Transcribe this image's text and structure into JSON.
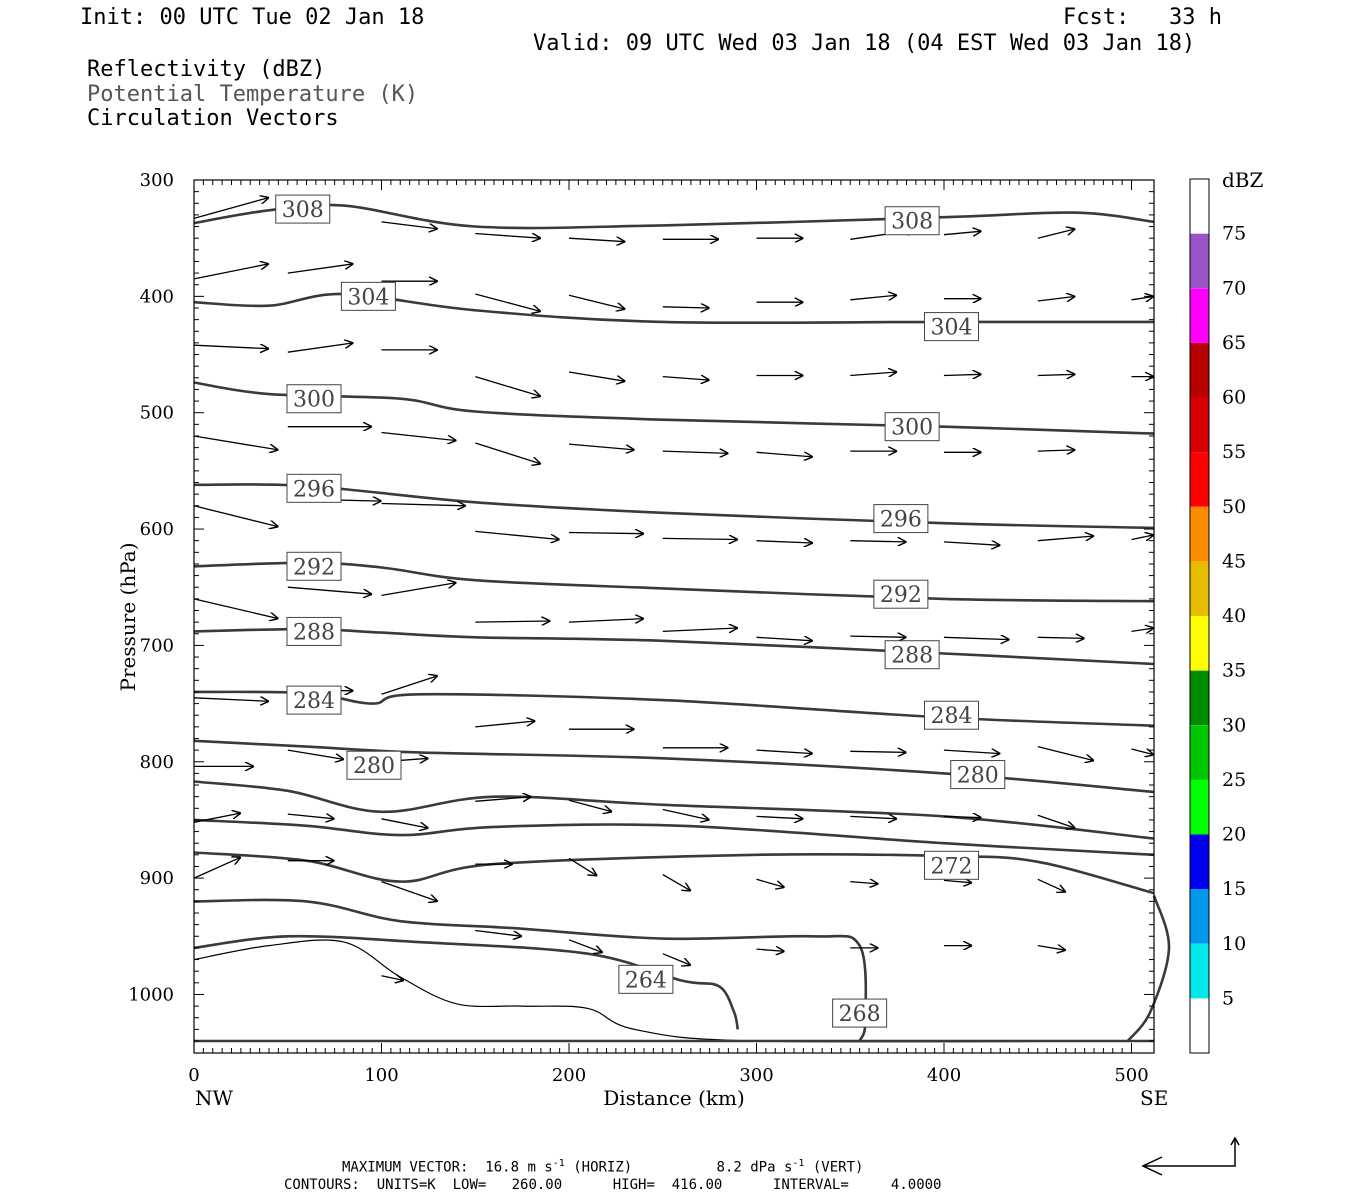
{
  "header": {
    "init": "Init: 00 UTC Tue 02 Jan 18",
    "fcst": "Fcst:   33 h",
    "valid": "Valid: 09 UTC Wed 03 Jan 18 (04 EST Wed 03 Jan 18)",
    "field1": "Reflectivity (dBZ)",
    "field2": "Potential Temperature (K)",
    "field3": "Circulation Vectors"
  },
  "footer": {
    "max_vector_label": "MAXIMUM VECTOR:",
    "horiz_value": "16.8 m s",
    "horiz_exp": "-1",
    "horiz_tag": "(HORIZ)",
    "vert_value": "8.2 dPa s",
    "vert_exp": "-1",
    "vert_tag": "(VERT)",
    "contours_label": "CONTOURS:",
    "units": "UNITS=K",
    "low": "LOW=   260.00",
    "high": "HIGH=  416.00",
    "interval": "INTERVAL=     4.0000"
  },
  "chart_data": {
    "type": "contour+vector cross-section",
    "xlabel": "Distance (km)",
    "ylabel": "Pressure (hPa)",
    "xlim": [
      0,
      512
    ],
    "ylim": [
      1040,
      300
    ],
    "x_ticks": [
      "0",
      "100",
      "200",
      "300",
      "400",
      "500"
    ],
    "y_ticks": [
      "300",
      "400",
      "500",
      "600",
      "700",
      "800",
      "900",
      "1000"
    ],
    "x_ends": [
      "NW",
      "SE"
    ],
    "colorbar": {
      "unit": "dBZ",
      "levels": [
        "5",
        "10",
        "15",
        "20",
        "25",
        "30",
        "35",
        "40",
        "45",
        "50",
        "55",
        "60",
        "65",
        "70",
        "75"
      ],
      "colors": [
        "#ffffff",
        "#00e8e8",
        "#0099ee",
        "#0000f0",
        "#00ff00",
        "#00c800",
        "#008c00",
        "#ffff00",
        "#e6bd00",
        "#ff8c00",
        "#ff0000",
        "#d80000",
        "#b80000",
        "#ff00ff",
        "#9955c8",
        "#ffffff"
      ]
    },
    "theta_contours": [
      {
        "label": "308",
        "points": [
          [
            0,
            337
          ],
          [
            40,
            326
          ],
          [
            80,
            322
          ],
          [
            150,
            340
          ],
          [
            250,
            339
          ],
          [
            400,
            332
          ],
          [
            470,
            328
          ],
          [
            512,
            336
          ]
        ],
        "labels": [
          [
            58,
            325
          ],
          [
            383,
            335
          ]
        ]
      },
      {
        "label": "304",
        "points": [
          [
            0,
            405
          ],
          [
            40,
            408
          ],
          [
            80,
            398
          ],
          [
            150,
            412
          ],
          [
            250,
            422
          ],
          [
            400,
            422
          ],
          [
            512,
            422
          ]
        ],
        "labels": [
          [
            93,
            400
          ],
          [
            404,
            426
          ]
        ]
      },
      {
        "label": "300",
        "points": [
          [
            0,
            474
          ],
          [
            40,
            484
          ],
          [
            110,
            488
          ],
          [
            150,
            499
          ],
          [
            250,
            506
          ],
          [
            400,
            512
          ],
          [
            512,
            518
          ]
        ],
        "labels": [
          [
            64,
            488
          ],
          [
            383,
            512
          ]
        ]
      },
      {
        "label": "296",
        "points": [
          [
            0,
            562
          ],
          [
            60,
            563
          ],
          [
            150,
            577
          ],
          [
            250,
            586
          ],
          [
            400,
            595
          ],
          [
            512,
            599
          ]
        ],
        "labels": [
          [
            64,
            565
          ],
          [
            377,
            591
          ]
        ]
      },
      {
        "label": "292",
        "points": [
          [
            0,
            632
          ],
          [
            60,
            629
          ],
          [
            100,
            633
          ],
          [
            150,
            644
          ],
          [
            250,
            651
          ],
          [
            400,
            660
          ],
          [
            512,
            662
          ]
        ],
        "labels": [
          [
            64,
            632
          ],
          [
            377,
            656
          ]
        ]
      },
      {
        "label": "288",
        "points": [
          [
            0,
            688
          ],
          [
            60,
            686
          ],
          [
            100,
            689
          ],
          [
            150,
            693
          ],
          [
            250,
            696
          ],
          [
            400,
            707
          ],
          [
            512,
            716
          ]
        ],
        "labels": [
          [
            64,
            688
          ],
          [
            383,
            708
          ]
        ]
      },
      {
        "label": "284",
        "points": [
          [
            0,
            740
          ],
          [
            60,
            741
          ],
          [
            95,
            750
          ],
          [
            120,
            742
          ],
          [
            250,
            747
          ],
          [
            400,
            762
          ],
          [
            512,
            769
          ]
        ],
        "labels": [
          [
            64,
            747
          ],
          [
            404,
            760
          ]
        ]
      },
      {
        "label": "280",
        "points": [
          [
            0,
            782
          ],
          [
            60,
            787
          ],
          [
            120,
            792
          ],
          [
            250,
            797
          ],
          [
            400,
            810
          ],
          [
            512,
            826
          ]
        ],
        "labels": [
          [
            96,
            803
          ],
          [
            418,
            811
          ]
        ]
      },
      {
        "label": "",
        "points": [
          [
            0,
            817
          ],
          [
            50,
            825
          ],
          [
            100,
            843
          ],
          [
            160,
            830
          ],
          [
            250,
            837
          ],
          [
            400,
            847
          ],
          [
            512,
            866
          ]
        ],
        "labels": []
      },
      {
        "label": "",
        "points": [
          [
            0,
            850
          ],
          [
            60,
            855
          ],
          [
            110,
            863
          ],
          [
            160,
            856
          ],
          [
            260,
            855
          ],
          [
            400,
            870
          ],
          [
            512,
            880
          ]
        ],
        "labels": []
      },
      {
        "label": "272",
        "points": [
          [
            0,
            878
          ],
          [
            60,
            885
          ],
          [
            110,
            903
          ],
          [
            160,
            888
          ],
          [
            300,
            880
          ],
          [
            400,
            881
          ],
          [
            450,
            886
          ],
          [
            512,
            913
          ]
        ],
        "labels": [
          [
            404,
            889
          ]
        ]
      },
      {
        "label": "",
        "points": [
          [
            0,
            920
          ],
          [
            60,
            920
          ],
          [
            110,
            937
          ],
          [
            170,
            943
          ],
          [
            250,
            952
          ],
          [
            330,
            950
          ],
          [
            355,
            958
          ],
          [
            358,
            1023
          ],
          [
            355,
            1040
          ]
        ],
        "labels": []
      },
      {
        "label": "264",
        "points": [
          [
            0,
            960
          ],
          [
            50,
            950
          ],
          [
            120,
            955
          ],
          [
            210,
            965
          ],
          [
            260,
            988
          ],
          [
            280,
            993
          ],
          [
            288,
            1015
          ],
          [
            290,
            1030
          ]
        ],
        "labels": [
          [
            241,
            987
          ]
        ]
      },
      {
        "label": "268",
        "points": [
          [
            512,
            915
          ],
          [
            520,
            960
          ],
          [
            510,
            1015
          ],
          [
            498,
            1040
          ]
        ],
        "labels": [
          [
            355,
            1016
          ]
        ]
      },
      {
        "label": "",
        "points": [
          [
            0,
            1040
          ],
          [
            512,
            1040
          ]
        ],
        "labels": []
      }
    ],
    "terrain": [
      [
        0,
        970
      ],
      [
        40,
        958
      ],
      [
        80,
        955
      ],
      [
        110,
        985
      ],
      [
        140,
        1008
      ],
      [
        175,
        1010
      ],
      [
        210,
        1012
      ],
      [
        235,
        1030
      ],
      [
        300,
        1040
      ],
      [
        512,
        1040
      ]
    ],
    "vectors": [
      [
        0,
        333,
        40,
        315
      ],
      [
        100,
        336,
        130,
        342
      ],
      [
        150,
        346,
        185,
        350
      ],
      [
        200,
        350,
        230,
        353
      ],
      [
        250,
        351,
        280,
        351
      ],
      [
        300,
        350,
        325,
        350
      ],
      [
        350,
        351,
        385,
        343
      ],
      [
        400,
        347,
        420,
        344
      ],
      [
        450,
        350,
        470,
        342
      ],
      [
        0,
        385,
        40,
        372
      ],
      [
        50,
        380,
        85,
        372
      ],
      [
        100,
        387,
        130,
        387
      ],
      [
        150,
        398,
        185,
        413
      ],
      [
        200,
        399,
        230,
        411
      ],
      [
        250,
        409,
        275,
        410
      ],
      [
        300,
        405,
        325,
        405
      ],
      [
        350,
        403,
        375,
        399
      ],
      [
        400,
        402,
        420,
        402
      ],
      [
        450,
        404,
        470,
        400
      ],
      [
        500,
        403,
        512,
        400
      ],
      [
        0,
        442,
        40,
        445
      ],
      [
        50,
        448,
        85,
        440
      ],
      [
        100,
        446,
        130,
        446
      ],
      [
        150,
        469,
        185,
        486
      ],
      [
        200,
        465,
        230,
        473
      ],
      [
        250,
        469,
        275,
        472
      ],
      [
        300,
        468,
        325,
        468
      ],
      [
        350,
        468,
        375,
        465
      ],
      [
        400,
        468,
        420,
        467
      ],
      [
        450,
        468,
        470,
        467
      ],
      [
        500,
        469,
        512,
        469
      ],
      [
        0,
        520,
        45,
        532
      ],
      [
        50,
        512,
        95,
        512
      ],
      [
        100,
        517,
        140,
        524
      ],
      [
        150,
        526,
        185,
        544
      ],
      [
        200,
        527,
        235,
        532
      ],
      [
        250,
        533,
        285,
        535
      ],
      [
        300,
        534,
        330,
        538
      ],
      [
        350,
        533,
        375,
        533
      ],
      [
        400,
        534,
        420,
        534
      ],
      [
        450,
        533,
        470,
        532
      ],
      [
        0,
        580,
        45,
        598
      ],
      [
        50,
        574,
        100,
        576
      ],
      [
        100,
        578,
        145,
        580
      ],
      [
        150,
        602,
        195,
        609
      ],
      [
        200,
        603,
        240,
        604
      ],
      [
        250,
        608,
        290,
        609
      ],
      [
        300,
        610,
        330,
        612
      ],
      [
        350,
        610,
        380,
        611
      ],
      [
        400,
        611,
        430,
        614
      ],
      [
        450,
        610,
        480,
        606
      ],
      [
        500,
        609,
        512,
        605
      ],
      [
        0,
        660,
        45,
        677
      ],
      [
        50,
        650,
        95,
        656
      ],
      [
        100,
        657,
        140,
        646
      ],
      [
        150,
        680,
        190,
        679
      ],
      [
        200,
        680,
        240,
        677
      ],
      [
        250,
        688,
        290,
        685
      ],
      [
        300,
        693,
        330,
        696
      ],
      [
        350,
        692,
        380,
        693
      ],
      [
        400,
        693,
        435,
        695
      ],
      [
        450,
        693,
        475,
        694
      ],
      [
        500,
        688,
        512,
        685
      ],
      [
        0,
        745,
        40,
        748
      ],
      [
        50,
        738,
        85,
        739
      ],
      [
        100,
        742,
        130,
        726
      ],
      [
        150,
        770,
        182,
        765
      ],
      [
        200,
        772,
        235,
        772
      ],
      [
        250,
        788,
        285,
        788
      ],
      [
        300,
        790,
        330,
        793
      ],
      [
        350,
        791,
        380,
        792
      ],
      [
        400,
        790,
        430,
        793
      ],
      [
        450,
        787,
        480,
        799
      ],
      [
        500,
        789,
        512,
        794
      ],
      [
        0,
        804,
        32,
        804
      ],
      [
        50,
        790,
        80,
        798
      ],
      [
        100,
        800,
        125,
        797
      ],
      [
        150,
        834,
        180,
        830
      ],
      [
        200,
        833,
        223,
        843
      ],
      [
        250,
        841,
        275,
        850
      ],
      [
        300,
        847,
        325,
        849
      ],
      [
        350,
        847,
        375,
        849
      ],
      [
        400,
        847,
        420,
        848
      ],
      [
        450,
        846,
        470,
        857
      ],
      [
        0,
        852,
        25,
        844
      ],
      [
        50,
        845,
        75,
        849
      ],
      [
        100,
        849,
        125,
        857
      ],
      [
        150,
        888,
        170,
        888
      ],
      [
        200,
        883,
        215,
        898
      ],
      [
        250,
        897,
        265,
        911
      ],
      [
        300,
        901,
        315,
        908
      ],
      [
        350,
        903,
        365,
        905
      ],
      [
        400,
        902,
        415,
        904
      ],
      [
        450,
        901,
        465,
        912
      ],
      [
        0,
        900,
        25,
        882
      ],
      [
        50,
        885,
        75,
        885
      ],
      [
        100,
        903,
        130,
        920
      ],
      [
        150,
        945,
        175,
        950
      ],
      [
        200,
        953,
        218,
        964
      ],
      [
        250,
        965,
        265,
        975
      ],
      [
        300,
        961,
        315,
        963
      ],
      [
        350,
        960,
        365,
        960
      ],
      [
        400,
        958,
        415,
        958
      ],
      [
        450,
        958,
        465,
        962
      ],
      [
        100,
        984,
        112,
        988
      ]
    ]
  }
}
